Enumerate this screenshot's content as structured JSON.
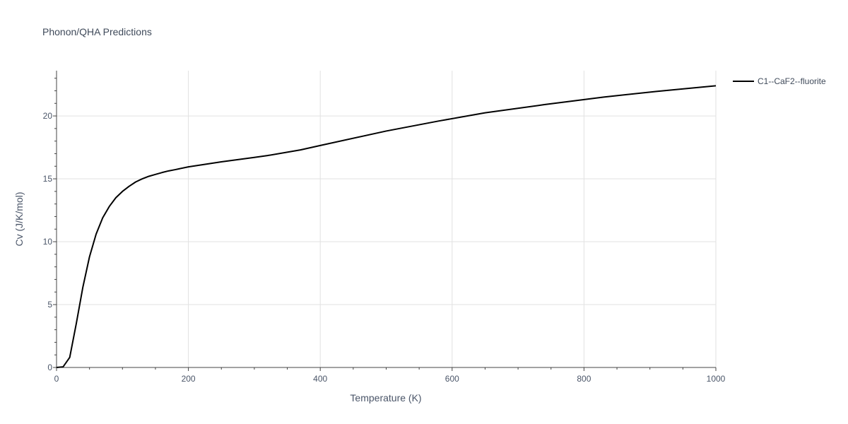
{
  "chart_data": {
    "type": "line",
    "title": "Phonon/QHA Predictions",
    "xlabel": "Temperature (K)",
    "ylabel": "Cv (J/K/mol)",
    "xlim": [
      0,
      1000
    ],
    "ylim": [
      0,
      23.6
    ],
    "x_ticks": [
      0,
      200,
      400,
      600,
      800,
      1000
    ],
    "y_ticks": [
      0,
      5,
      10,
      15,
      20
    ],
    "grid": true,
    "legend_position": "top-right",
    "series": [
      {
        "name": "C1--CaF2--fluorite",
        "color": "#000000",
        "x": [
          0,
          10,
          20,
          30,
          40,
          50,
          60,
          70,
          80,
          90,
          100,
          110,
          120,
          130,
          140,
          150,
          160,
          170,
          180,
          200,
          250,
          300,
          320,
          370,
          400,
          500,
          580,
          650,
          740,
          830,
          910,
          1000
        ],
        "y": [
          0,
          0.05,
          0.8,
          3.5,
          6.4,
          8.8,
          10.6,
          11.9,
          12.8,
          13.5,
          14.0,
          14.4,
          14.75,
          15.0,
          15.2,
          15.35,
          15.5,
          15.63,
          15.73,
          15.95,
          16.35,
          16.7,
          16.85,
          17.3,
          17.65,
          18.8,
          19.6,
          20.25,
          20.9,
          21.5,
          21.95,
          22.4
        ]
      }
    ]
  }
}
